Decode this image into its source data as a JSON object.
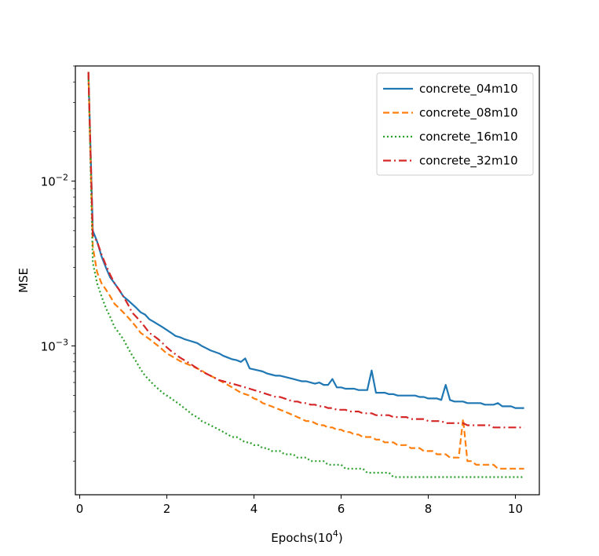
{
  "chart_data": {
    "type": "line",
    "title": "",
    "xlabel": "Epochs(10",
    "xlabel_exp": "4",
    "xlabel_close": ")",
    "ylabel": "MSE",
    "yscale": "log",
    "xlim": [
      -0.1,
      10.55
    ],
    "ylim": [
      0.000125,
      0.05
    ],
    "x_ticks": [
      0,
      2,
      4,
      6,
      8,
      10
    ],
    "x_tick_labels": [
      "0",
      "2",
      "4",
      "6",
      "8",
      "10"
    ],
    "y_major_ticks": [
      0.001,
      0.01
    ],
    "y_tick_labels": [
      {
        "base": "10",
        "exp": "−3"
      },
      {
        "base": "10",
        "exp": "−2"
      }
    ],
    "legend_position": "top-right",
    "x": [
      0.2,
      0.3,
      0.4,
      0.5,
      0.6,
      0.7,
      0.8,
      0.9,
      1.0,
      1.1,
      1.2,
      1.3,
      1.4,
      1.5,
      1.6,
      1.7,
      1.8,
      1.9,
      2.0,
      2.1,
      2.2,
      2.3,
      2.4,
      2.5,
      2.6,
      2.7,
      2.8,
      2.9,
      3.0,
      3.1,
      3.2,
      3.3,
      3.4,
      3.5,
      3.6,
      3.7,
      3.8,
      3.9,
      4.0,
      4.1,
      4.2,
      4.3,
      4.4,
      4.5,
      4.6,
      4.7,
      4.8,
      4.9,
      5.0,
      5.1,
      5.2,
      5.3,
      5.4,
      5.5,
      5.6,
      5.7,
      5.8,
      5.9,
      6.0,
      6.1,
      6.2,
      6.3,
      6.4,
      6.5,
      6.6,
      6.7,
      6.8,
      6.9,
      7.0,
      7.1,
      7.2,
      7.3,
      7.4,
      7.5,
      7.6,
      7.7,
      7.8,
      7.9,
      8.0,
      8.1,
      8.2,
      8.3,
      8.4,
      8.5,
      8.6,
      8.7,
      8.8,
      8.9,
      9.0,
      9.1,
      9.2,
      9.3,
      9.4,
      9.5,
      9.6,
      9.7,
      9.8,
      9.9,
      10.0,
      10.1,
      10.2
    ],
    "series": [
      {
        "name": "concrete_04m10",
        "color": "#1f77b4",
        "dash": "solid",
        "values": [
          0.046,
          0.005,
          0.0043,
          0.0035,
          0.003,
          0.0026,
          0.0024,
          0.0022,
          0.002,
          0.0019,
          0.0018,
          0.0017,
          0.0016,
          0.00155,
          0.00145,
          0.0014,
          0.00135,
          0.0013,
          0.00125,
          0.0012,
          0.00115,
          0.00113,
          0.0011,
          0.00108,
          0.00106,
          0.00104,
          0.001,
          0.00097,
          0.00094,
          0.00092,
          0.0009,
          0.00087,
          0.00085,
          0.00083,
          0.00082,
          0.0008,
          0.00084,
          0.00073,
          0.00072,
          0.00071,
          0.0007,
          0.00068,
          0.00067,
          0.00066,
          0.00066,
          0.00065,
          0.00064,
          0.00063,
          0.00062,
          0.00061,
          0.00061,
          0.0006,
          0.00059,
          0.0006,
          0.00058,
          0.00058,
          0.00063,
          0.00056,
          0.00056,
          0.00055,
          0.00055,
          0.00055,
          0.00054,
          0.00054,
          0.00054,
          0.00071,
          0.00052,
          0.00052,
          0.00052,
          0.00051,
          0.00051,
          0.0005,
          0.0005,
          0.0005,
          0.0005,
          0.0005,
          0.00049,
          0.00049,
          0.00048,
          0.00048,
          0.00048,
          0.00047,
          0.00058,
          0.00047,
          0.00046,
          0.00046,
          0.00046,
          0.00045,
          0.00045,
          0.00045,
          0.00045,
          0.00044,
          0.00044,
          0.00044,
          0.00045,
          0.00043,
          0.00043,
          0.00043,
          0.00042,
          0.00042,
          0.00042
        ]
      },
      {
        "name": "concrete_08m10",
        "color": "#ff7f0e",
        "dash": "8,4",
        "values": [
          0.046,
          0.004,
          0.0028,
          0.0024,
          0.0022,
          0.002,
          0.0018,
          0.0017,
          0.0016,
          0.0015,
          0.0014,
          0.0013,
          0.0012,
          0.00115,
          0.0011,
          0.00105,
          0.001,
          0.00095,
          0.0009,
          0.00087,
          0.00084,
          0.00081,
          0.00079,
          0.00077,
          0.00075,
          0.00073,
          0.00071,
          0.00068,
          0.00066,
          0.00064,
          0.00062,
          0.0006,
          0.00058,
          0.00056,
          0.00054,
          0.00052,
          0.00051,
          0.0005,
          0.00048,
          0.00047,
          0.00045,
          0.00044,
          0.00043,
          0.00042,
          0.00041,
          0.0004,
          0.00039,
          0.00038,
          0.00037,
          0.00036,
          0.00035,
          0.00035,
          0.00034,
          0.00033,
          0.00033,
          0.00032,
          0.00032,
          0.00031,
          0.00031,
          0.0003,
          0.0003,
          0.00029,
          0.00029,
          0.00028,
          0.00028,
          0.00028,
          0.00027,
          0.00027,
          0.00026,
          0.00026,
          0.00026,
          0.00025,
          0.00025,
          0.00025,
          0.00024,
          0.00024,
          0.00024,
          0.00023,
          0.00023,
          0.00023,
          0.00022,
          0.00022,
          0.00022,
          0.00021,
          0.00021,
          0.00021,
          0.00036,
          0.0002,
          0.0002,
          0.00019,
          0.00019,
          0.00019,
          0.00019,
          0.00019,
          0.00018,
          0.00018,
          0.00018,
          0.00018,
          0.00018,
          0.00018,
          0.00018
        ]
      },
      {
        "name": "concrete_16m10",
        "color": "#2ca02c",
        "dash": "2,3",
        "values": [
          0.046,
          0.0032,
          0.0024,
          0.002,
          0.0017,
          0.0015,
          0.0013,
          0.0012,
          0.0011,
          0.00098,
          0.00088,
          0.0008,
          0.00072,
          0.00066,
          0.00062,
          0.00058,
          0.00055,
          0.00052,
          0.0005,
          0.00048,
          0.00046,
          0.00044,
          0.00042,
          0.0004,
          0.00038,
          0.00037,
          0.00035,
          0.00034,
          0.00033,
          0.00032,
          0.00031,
          0.0003,
          0.00029,
          0.00028,
          0.00028,
          0.00027,
          0.00026,
          0.00026,
          0.00025,
          0.00025,
          0.00024,
          0.00024,
          0.00023,
          0.00023,
          0.00023,
          0.00022,
          0.00022,
          0.00022,
          0.00021,
          0.00021,
          0.00021,
          0.0002,
          0.0002,
          0.0002,
          0.0002,
          0.00019,
          0.00019,
          0.00019,
          0.00019,
          0.00018,
          0.00018,
          0.00018,
          0.00018,
          0.00018,
          0.00017,
          0.00017,
          0.00017,
          0.00017,
          0.00017,
          0.00017,
          0.00016,
          0.00016,
          0.00016,
          0.00016,
          0.00016,
          0.00016,
          0.00016,
          0.00016,
          0.00016,
          0.00016,
          0.00016,
          0.00016,
          0.00016,
          0.00016,
          0.00016,
          0.00016,
          0.00016,
          0.00016,
          0.00016,
          0.00016,
          0.00016,
          0.00016,
          0.00016,
          0.00016,
          0.00016,
          0.00016,
          0.00016,
          0.00016,
          0.00016,
          0.00016,
          0.00016
        ]
      },
      {
        "name": "concrete_32m10",
        "color": "#d62728",
        "dash": "10,4,2,4",
        "values": [
          0.046,
          0.0047,
          0.0043,
          0.0036,
          0.0031,
          0.0027,
          0.0024,
          0.0022,
          0.002,
          0.0018,
          0.0016,
          0.0015,
          0.0014,
          0.0013,
          0.0012,
          0.00115,
          0.0011,
          0.00104,
          0.00098,
          0.00093,
          0.00089,
          0.00085,
          0.00082,
          0.00079,
          0.00076,
          0.00073,
          0.0007,
          0.00068,
          0.00066,
          0.00064,
          0.00062,
          0.00061,
          0.0006,
          0.00059,
          0.00058,
          0.00057,
          0.00056,
          0.00055,
          0.00054,
          0.00053,
          0.00052,
          0.00051,
          0.0005,
          0.00049,
          0.00049,
          0.00048,
          0.00047,
          0.00046,
          0.00046,
          0.00045,
          0.00045,
          0.00044,
          0.00044,
          0.00043,
          0.00043,
          0.00042,
          0.00042,
          0.00041,
          0.00041,
          0.00041,
          0.0004,
          0.0004,
          0.0004,
          0.00039,
          0.00039,
          0.00039,
          0.00038,
          0.00038,
          0.00038,
          0.00038,
          0.00037,
          0.00037,
          0.00037,
          0.00037,
          0.00036,
          0.00036,
          0.00036,
          0.00036,
          0.00035,
          0.00035,
          0.00035,
          0.00035,
          0.00034,
          0.00034,
          0.00034,
          0.00034,
          0.00034,
          0.00033,
          0.00033,
          0.00033,
          0.00033,
          0.00033,
          0.00033,
          0.00032,
          0.00032,
          0.00032,
          0.00032,
          0.00032,
          0.00032,
          0.00032,
          0.00032
        ]
      }
    ]
  }
}
